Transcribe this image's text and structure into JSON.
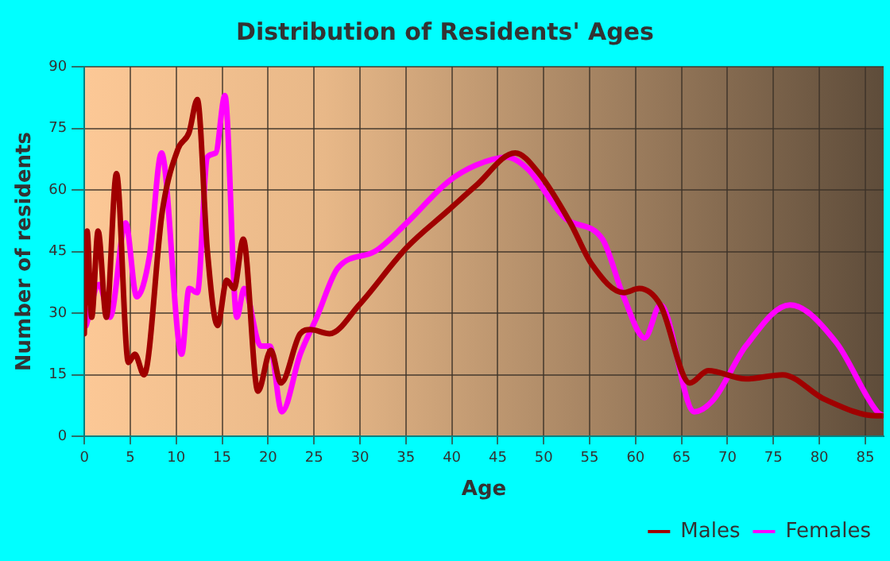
{
  "chart_data": {
    "type": "line",
    "title": "Distribution of Residents' Ages",
    "xlabel": "Age",
    "ylabel": "Number of residents",
    "xlim": [
      0,
      87
    ],
    "xticks": [
      0,
      5,
      10,
      15,
      20,
      25,
      30,
      35,
      40,
      45,
      50,
      55,
      60,
      65,
      70,
      75,
      80,
      85
    ],
    "ylim": [
      0,
      90
    ],
    "yticks": [
      0,
      15,
      30,
      45,
      60,
      75,
      90
    ],
    "grid": true,
    "legend": "bottom right",
    "marker": "none",
    "series": [
      {
        "name": "Males",
        "color": "#a00000",
        "x": [
          0,
          0.3,
          0.8,
          1.5,
          2.4,
          3.5,
          4.8,
          5.5,
          6.5,
          8.5,
          10.2,
          11.4,
          12.3,
          13.4,
          14.5,
          15.5,
          16.3,
          17.3,
          18.9,
          20.3,
          21.4,
          23.5,
          24.6,
          26.7,
          29.9,
          35.1,
          39.6,
          42.6,
          46.9,
          49.5,
          52.9,
          55.2,
          58.7,
          60.4,
          62.7,
          65.9,
          67.9,
          72,
          76,
          80.6,
          86.3,
          87
        ],
        "values": [
          25,
          50,
          29,
          50,
          29,
          64,
          18,
          20,
          15,
          55,
          70,
          74,
          82,
          45,
          27,
          38,
          36,
          48,
          11,
          21,
          13,
          25,
          26,
          25,
          32,
          46,
          55,
          61,
          69,
          64,
          52,
          42,
          35,
          36,
          32,
          13,
          16,
          14,
          15,
          9,
          5,
          5
        ]
      },
      {
        "name": "Females",
        "color": "#ff00ff",
        "x": [
          0.2,
          1.6,
          2.8,
          4.5,
          5.7,
          7.1,
          8.4,
          10.6,
          11.4,
          12.3,
          13.4,
          14.3,
          15.3,
          16.6,
          17.4,
          19.2,
          20.2,
          21.5,
          23.5,
          25.3,
          27.6,
          31.6,
          35.1,
          39.6,
          42.6,
          46,
          48.3,
          52.4,
          56.4,
          58.7,
          61,
          62.7,
          66.4,
          68.5,
          72,
          76.8,
          81.8,
          86.3,
          87
        ],
        "values": [
          27,
          37,
          29,
          52,
          34,
          44,
          69,
          20,
          36,
          35,
          68,
          69,
          83,
          29,
          36,
          22,
          22,
          6,
          20,
          29,
          41,
          45,
          52,
          62,
          66,
          68,
          65,
          53,
          48,
          34,
          24,
          32,
          6,
          9,
          22,
          32,
          23,
          6,
          5
        ]
      }
    ]
  }
}
